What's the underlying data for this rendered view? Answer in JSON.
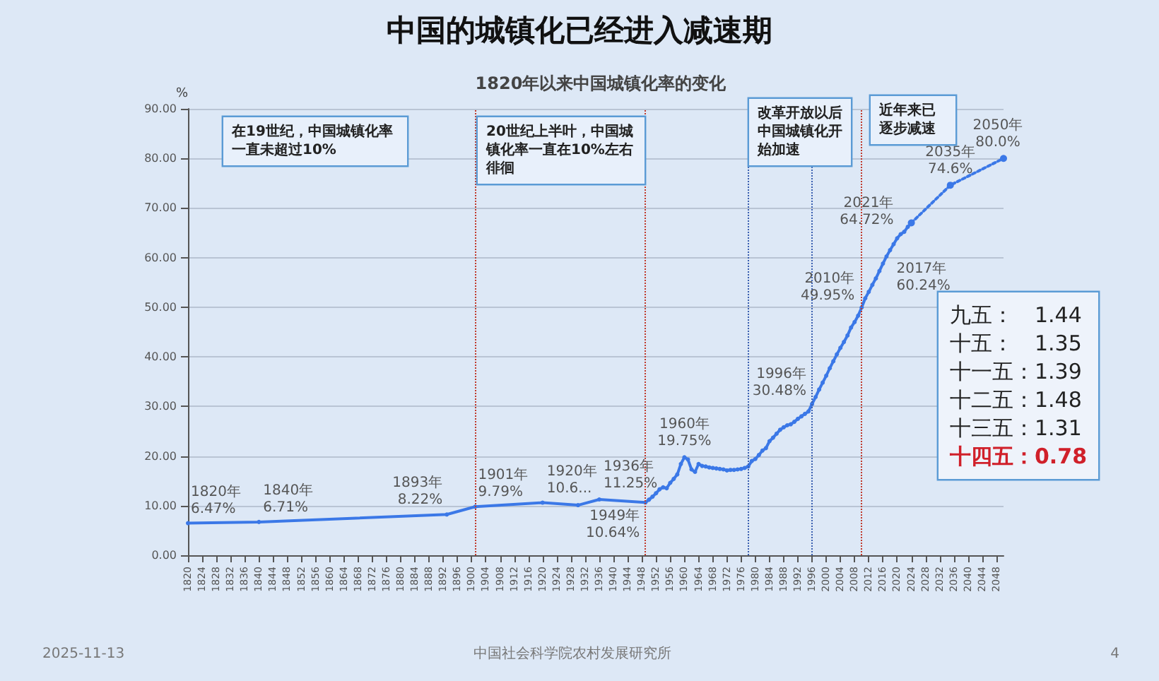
{
  "chart_data": {
    "type": "line",
    "title": "中国的城镇化已经进入减速期",
    "subtitle": "1820年以来中国城镇化率的变化",
    "ylabel": "%",
    "xlim": [
      1820,
      2050
    ],
    "xticks": [
      1820,
      1824,
      1828,
      1832,
      1836,
      1840,
      1844,
      1848,
      1852,
      1856,
      1860,
      1864,
      1868,
      1872,
      1876,
      1880,
      1884,
      1888,
      1892,
      1896,
      1900,
      1904,
      1908,
      1912,
      1916,
      1920,
      1924,
      1928,
      1932,
      1936,
      1940,
      1944,
      1948,
      1952,
      1956,
      1960,
      1964,
      1968,
      1972,
      1976,
      1980,
      1984,
      1988,
      1992,
      1996,
      2000,
      2004,
      2008,
      2012,
      2016,
      2020,
      2024,
      2028,
      2032,
      2036,
      2040,
      2044,
      2048
    ],
    "ylim": [
      0,
      90
    ],
    "yticks": [
      {
        "value": 0,
        "label": "0.00"
      },
      {
        "value": 10,
        "label": "10.00"
      },
      {
        "value": 20,
        "label": "20.00"
      },
      {
        "value": 30,
        "label": "30.00"
      },
      {
        "value": 40,
        "label": "40.00"
      },
      {
        "value": 50,
        "label": "50.00"
      },
      {
        "value": 60,
        "label": "60.00"
      },
      {
        "value": 70,
        "label": "70.00"
      },
      {
        "value": 80,
        "label": "80.00"
      },
      {
        "value": 90,
        "label": "90.00"
      }
    ],
    "grid": "y",
    "marker": "circle",
    "series": [
      {
        "color": "#3b78e7",
        "line_style": "solid",
        "x": [
          1820,
          1840,
          1893,
          1901,
          1920,
          1930,
          1936,
          1949,
          1950,
          1951,
          1952,
          1953,
          1954,
          1955,
          1956,
          1957,
          1958,
          1959,
          1960,
          1961,
          1962,
          1963,
          1964,
          1965,
          1966,
          1967,
          1968,
          1969,
          1970,
          1971,
          1972,
          1973,
          1974,
          1975,
          1976,
          1977,
          1978,
          1979,
          1980,
          1981,
          1982,
          1983,
          1984,
          1985,
          1986,
          1987,
          1988,
          1989,
          1990,
          1991,
          1992,
          1993,
          1994,
          1995,
          1996,
          1997,
          1998,
          1999,
          2000,
          2001,
          2002,
          2003,
          2004,
          2005,
          2006,
          2007,
          2008,
          2009,
          2010,
          2011,
          2012,
          2013,
          2014,
          2015,
          2016,
          2017,
          2018,
          2019,
          2020,
          2021,
          2022,
          2023,
          2024
        ],
        "values": [
          6.47,
          6.71,
          8.22,
          9.79,
          10.6,
          10.1,
          11.25,
          10.64,
          11.2,
          11.8,
          12.5,
          13.3,
          13.7,
          13.5,
          14.6,
          15.4,
          16.3,
          18.4,
          19.75,
          19.3,
          17.3,
          16.8,
          18.4,
          18.0,
          17.9,
          17.7,
          17.6,
          17.5,
          17.4,
          17.3,
          17.1,
          17.2,
          17.2,
          17.3,
          17.4,
          17.6,
          17.9,
          19.0,
          19.4,
          20.2,
          21.1,
          21.6,
          23.0,
          23.7,
          24.5,
          25.3,
          25.8,
          26.2,
          26.4,
          26.9,
          27.5,
          28.0,
          28.5,
          29.0,
          30.48,
          31.9,
          33.4,
          34.8,
          36.2,
          37.7,
          39.1,
          40.5,
          41.8,
          43.0,
          44.3,
          45.9,
          47.0,
          48.3,
          49.95,
          51.8,
          53.1,
          54.5,
          55.8,
          57.3,
          58.8,
          60.24,
          61.5,
          62.7,
          63.9,
          64.72,
          65.2,
          66.2,
          67.0
        ]
      },
      {
        "color": "#3b78e7",
        "line_style": "dotted",
        "x": [
          2024,
          2035,
          2050
        ],
        "values": [
          67.0,
          74.6,
          80.0
        ]
      }
    ],
    "ref_lines": [
      {
        "axis": "x",
        "value": 1901,
        "color": "#c0392b",
        "line_style": "dotted"
      },
      {
        "axis": "x",
        "value": 1949,
        "color": "#c0392b",
        "line_style": "dotted"
      },
      {
        "axis": "x",
        "value": 1978,
        "color": "#3a5fb0",
        "line_style": "dotted"
      },
      {
        "axis": "x",
        "value": 1996,
        "color": "#3a5fb0",
        "line_style": "dotted"
      },
      {
        "axis": "x",
        "value": 2010,
        "color": "#c0392b",
        "line_style": "dotted"
      }
    ],
    "annotations": [
      {
        "text": "1820年\n6.47%",
        "x": 1820,
        "y": 6.47
      },
      {
        "text": "1840年\n6.71%",
        "x": 1840,
        "y": 6.71
      },
      {
        "text": "1893年\n8.22%",
        "x": 1893,
        "y": 8.22
      },
      {
        "text": "1901年\n9.79%",
        "x": 1901,
        "y": 9.79
      },
      {
        "text": "1920年\n10.6...",
        "x": 1920,
        "y": 10.6
      },
      {
        "text": "1936年\n11.25%",
        "x": 1936,
        "y": 11.25
      },
      {
        "text": "1949年\n10.64%",
        "x": 1949,
        "y": 10.64
      },
      {
        "text": "1960年\n19.75%",
        "x": 1960,
        "y": 19.75
      },
      {
        "text": "1996年\n30.48%",
        "x": 1996,
        "y": 30.48
      },
      {
        "text": "2010年\n49.95%",
        "x": 2010,
        "y": 49.95
      },
      {
        "text": "2017年\n60.24%",
        "x": 2017,
        "y": 60.24
      },
      {
        "text": "2021年\n64.72%",
        "x": 2021,
        "y": 64.72
      },
      {
        "text": "2035年\n74.6%",
        "x": 2035,
        "y": 74.6
      },
      {
        "text": "2050年\n80.0%",
        "x": 2050,
        "y": 80.0
      },
      "在19世纪，中国城镇化率一直未超过10%",
      "20世纪上半叶，中国城镇化率一直在10%左右徘徊",
      "改革开放以后中国城镇化开始加速",
      "近年来已逐步减速",
      "九五：　1.44",
      "十五：　1.35",
      "十一五：1.39",
      "十二五：1.48",
      "十三五：1.31",
      "十四五：0.78",
      "2025-11-13",
      "中国社会科学院农村发展研究所",
      "4"
    ]
  }
}
